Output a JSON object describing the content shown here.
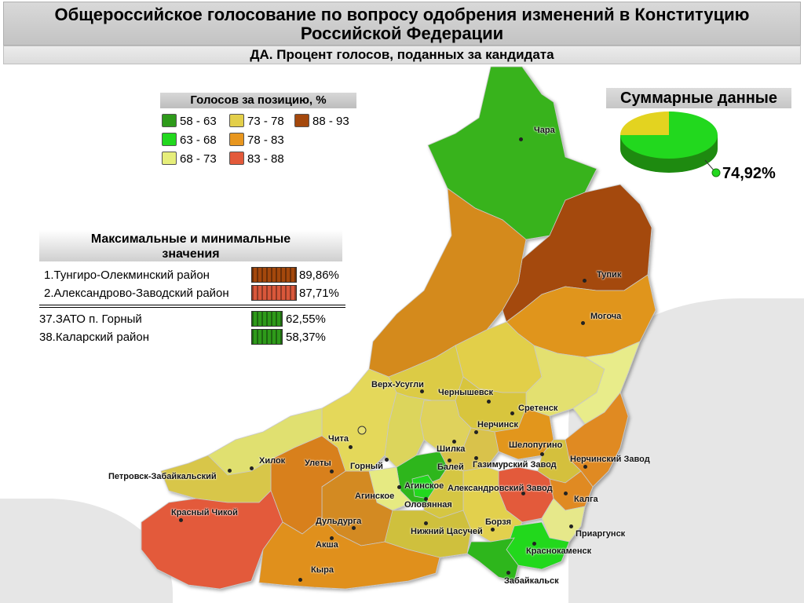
{
  "header": {
    "title_line1": "Общероссийское голосование по вопросу одобрения изменений в Конституцию",
    "title_line2": "Российской Федерации",
    "subtitle": "ДА. Процент голосов, поданных за кандидата"
  },
  "legend": {
    "title": "Голосов за позицию, %",
    "items": [
      {
        "label": "58 - 63",
        "color": "#2e9a1a"
      },
      {
        "label": "63 - 68",
        "color": "#22d81e"
      },
      {
        "label": "68 - 73",
        "color": "#e6ee7a"
      },
      {
        "label": "73 - 78",
        "color": "#e3cf4a"
      },
      {
        "label": "78 - 83",
        "color": "#e8961e"
      },
      {
        "label": "83 - 88",
        "color": "#e35a3a"
      },
      {
        "label": "88 - 93",
        "color": "#a4480c"
      }
    ]
  },
  "summary": {
    "title": "Суммарные данные",
    "value": "74,92%",
    "yes_fraction": 0.7492,
    "yes_color": "#22d81e",
    "no_color": "#e3d320"
  },
  "minmax": {
    "title_line1": "Максимальные и минимальные",
    "title_line2": "значения",
    "top": [
      {
        "label": "1.Тунгиро-Олекминский район",
        "value": "89,86%",
        "color": "#a4480c"
      },
      {
        "label": "2.Александрово-Заводский район",
        "value": "87,71%",
        "color": "#d9573a"
      }
    ],
    "bottom": [
      {
        "label": "37.ЗАТО п. Горный",
        "value": "62,55%",
        "color": "#2e9a1a"
      },
      {
        "label": "38.Каларский район",
        "value": "58,37%",
        "color": "#2e9a1a"
      }
    ]
  },
  "places": {
    "chara": "Чара",
    "tupik": "Тупик",
    "mogocha": "Могоча",
    "verkh_usugli": "Верх-Усугли",
    "chernyshevsk": "Чернышевск",
    "sretensk": "Сретенск",
    "nerchinsk": "Нерчинск",
    "chita": "Чита",
    "shilka": "Шилка",
    "shelopugino": "Шелопугино",
    "khilok": "Хилок",
    "ulety": "Улеты",
    "gorny": "Горный",
    "balei": "Балей",
    "gazimursky_zavod": "Газимурский Завод",
    "nerchinsky_zavod": "Нерчинский Завод",
    "petrovsk": "Петровск-Забайкальский",
    "aginskoe_n": "Агинское",
    "aginskoe": "Агинское",
    "alexandrovsky_zavod": "Александровский Завод",
    "kalga": "Калга",
    "olovyannaya": "Оловянная",
    "krasny_chikoy": "Красный Чикой",
    "duldurga": "Дульдурга",
    "borzya": "Борзя",
    "priargunsk": "Приаргунск",
    "nizhny_tsasuchey": "Нижний Цасучей",
    "aksha": "Акша",
    "krasnokamensk": "Краснокаменск",
    "kyra": "Кыра",
    "zabaikalsk": "Забайкальск"
  }
}
